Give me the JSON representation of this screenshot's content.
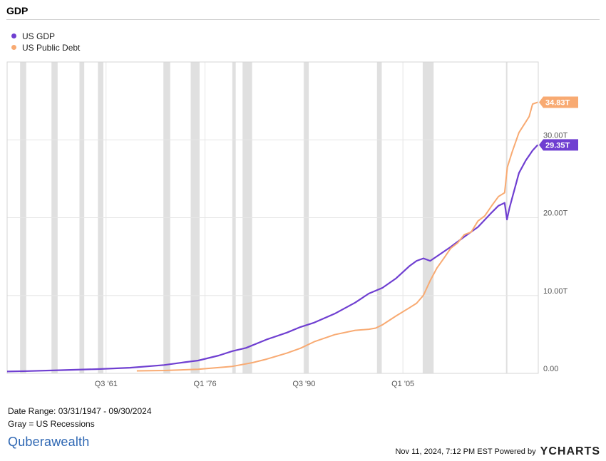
{
  "header": {
    "title": "GDP"
  },
  "legend": [
    {
      "label": "US GDP",
      "color": "#6f3fd1"
    },
    {
      "label": "US Public Debt",
      "color": "#f8aa72"
    }
  ],
  "footer": {
    "date_range": "Date Range: 03/31/1947 - 09/30/2024",
    "recession_note": "Gray = US Recessions",
    "logo_text": "Quberawealth",
    "timestamp": "Nov 11, 2024, 7:12 PM EST",
    "powered_by": "Powered by",
    "brand": "YCHARTS"
  },
  "chart_data": {
    "type": "line",
    "x_axis": {
      "type": "date",
      "range": [
        "1947-01-01",
        "2024-11-01"
      ],
      "ticks": [
        "Q3 '61",
        "Q1 '76",
        "Q3 '90",
        "Q1 '05"
      ]
    },
    "y_axis": {
      "range": [
        0,
        40
      ],
      "ticks": [
        "0.00",
        "10.00T",
        "20.00T",
        "30.00T"
      ],
      "position": "right"
    },
    "grid": true,
    "legend_position": "top-left",
    "recessions": [
      [
        1948.9,
        1949.8
      ],
      [
        1953.5,
        1954.4
      ],
      [
        1957.6,
        1958.3
      ],
      [
        1960.3,
        1961.1
      ],
      [
        1969.9,
        1970.9
      ],
      [
        1973.9,
        1975.2
      ],
      [
        1980.0,
        1980.5
      ],
      [
        1981.5,
        1982.9
      ],
      [
        1990.5,
        1991.2
      ],
      [
        2001.2,
        2001.9
      ],
      [
        2007.9,
        2009.5
      ],
      [
        2020.1,
        2020.3
      ]
    ],
    "series": [
      {
        "name": "US GDP",
        "color": "#6f3fd1",
        "end_label": "29.35T",
        "points": [
          [
            1947.0,
            0.24
          ],
          [
            1950,
            0.29
          ],
          [
            1955,
            0.41
          ],
          [
            1960,
            0.54
          ],
          [
            1965,
            0.72
          ],
          [
            1970,
            1.07
          ],
          [
            1973,
            1.43
          ],
          [
            1975,
            1.65
          ],
          [
            1978,
            2.29
          ],
          [
            1980,
            2.86
          ],
          [
            1982,
            3.27
          ],
          [
            1985,
            4.34
          ],
          [
            1988,
            5.24
          ],
          [
            1990,
            5.96
          ],
          [
            1992,
            6.52
          ],
          [
            1995,
            7.66
          ],
          [
            1998,
            9.09
          ],
          [
            2000,
            10.25
          ],
          [
            2002,
            10.98
          ],
          [
            2004,
            12.21
          ],
          [
            2006,
            13.81
          ],
          [
            2007,
            14.45
          ],
          [
            2008,
            14.77
          ],
          [
            2009,
            14.45
          ],
          [
            2010,
            15.05
          ],
          [
            2012,
            16.25
          ],
          [
            2014,
            17.55
          ],
          [
            2016,
            18.8
          ],
          [
            2018,
            20.66
          ],
          [
            2019,
            21.54
          ],
          [
            2019.9,
            21.9
          ],
          [
            2020.25,
            19.76
          ],
          [
            2020.6,
            21.2
          ],
          [
            2021,
            22.5
          ],
          [
            2022,
            25.74
          ],
          [
            2023,
            27.36
          ],
          [
            2024,
            28.62
          ],
          [
            2024.75,
            29.35
          ]
        ]
      },
      {
        "name": "US Public Debt",
        "color": "#f8aa72",
        "end_label": "34.83T",
        "points": [
          [
            1966.0,
            0.32
          ],
          [
            1970,
            0.37
          ],
          [
            1975,
            0.53
          ],
          [
            1980,
            0.9
          ],
          [
            1983,
            1.38
          ],
          [
            1985,
            1.82
          ],
          [
            1988,
            2.6
          ],
          [
            1990,
            3.23
          ],
          [
            1992,
            4.06
          ],
          [
            1995,
            4.97
          ],
          [
            1998,
            5.53
          ],
          [
            2000,
            5.67
          ],
          [
            2001,
            5.81
          ],
          [
            2002,
            6.23
          ],
          [
            2004,
            7.38
          ],
          [
            2006,
            8.45
          ],
          [
            2007,
            9.01
          ],
          [
            2008,
            10.02
          ],
          [
            2009,
            11.91
          ],
          [
            2010,
            13.56
          ],
          [
            2011,
            14.79
          ],
          [
            2012,
            16.07
          ],
          [
            2013,
            16.74
          ],
          [
            2014,
            17.82
          ],
          [
            2015,
            18.15
          ],
          [
            2016,
            19.57
          ],
          [
            2017,
            20.24
          ],
          [
            2018,
            21.52
          ],
          [
            2019,
            22.72
          ],
          [
            2019.9,
            23.2
          ],
          [
            2020.3,
            26.48
          ],
          [
            2021,
            28.43
          ],
          [
            2022,
            30.93
          ],
          [
            2023,
            32.3
          ],
          [
            2023.5,
            32.99
          ],
          [
            2024,
            34.59
          ],
          [
            2024.75,
            34.83
          ]
        ]
      }
    ]
  }
}
